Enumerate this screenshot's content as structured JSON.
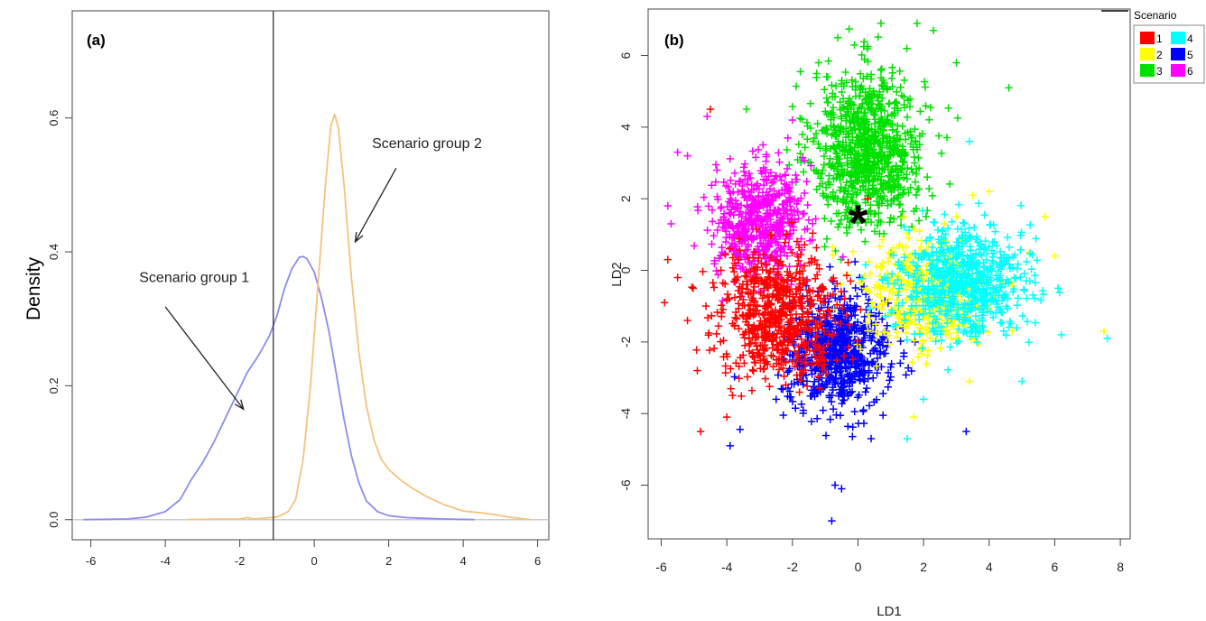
{
  "chart_data": [
    {
      "type": "line",
      "panel_label": "(a)",
      "ylabel": "Density",
      "xlabel": "",
      "xlim": [
        -6.5,
        6.3
      ],
      "ylim": [
        -0.03,
        0.76
      ],
      "x_ticks": [
        -6,
        -4,
        -2,
        0,
        2,
        4,
        6
      ],
      "y_ticks": [
        0.0,
        0.2,
        0.4,
        0.6
      ],
      "vertical_line_x": -1.1,
      "grid": false,
      "series": [
        {
          "name": "Scenario group 1",
          "color": "#8C8CF0",
          "points": [
            [
              -6.2,
              0
            ],
            [
              -5,
              0.001
            ],
            [
              -4.5,
              0.004
            ],
            [
              -4,
              0.012
            ],
            [
              -3.6,
              0.03
            ],
            [
              -3.3,
              0.06
            ],
            [
              -3,
              0.085
            ],
            [
              -2.7,
              0.115
            ],
            [
              -2.4,
              0.15
            ],
            [
              -2.1,
              0.185
            ],
            [
              -1.8,
              0.22
            ],
            [
              -1.5,
              0.245
            ],
            [
              -1.2,
              0.275
            ],
            [
              -1,
              0.305
            ],
            [
              -0.8,
              0.345
            ],
            [
              -0.6,
              0.375
            ],
            [
              -0.4,
              0.392
            ],
            [
              -0.3,
              0.393
            ],
            [
              -0.2,
              0.39
            ],
            [
              0,
              0.37
            ],
            [
              0.2,
              0.33
            ],
            [
              0.4,
              0.28
            ],
            [
              0.6,
              0.215
            ],
            [
              0.8,
              0.15
            ],
            [
              1,
              0.095
            ],
            [
              1.2,
              0.055
            ],
            [
              1.4,
              0.028
            ],
            [
              1.7,
              0.012
            ],
            [
              2,
              0.006
            ],
            [
              2.5,
              0.003
            ],
            [
              3,
              0.002
            ],
            [
              3.5,
              0.001
            ],
            [
              4.3,
              0
            ]
          ]
        },
        {
          "name": "Scenario group 2",
          "color": "#F5C27F",
          "points": [
            [
              -3.4,
              0
            ],
            [
              -2.5,
              0.001
            ],
            [
              -2,
              0.001
            ],
            [
              -1.8,
              0.003
            ],
            [
              -1.6,
              0.001
            ],
            [
              -1,
              0.004
            ],
            [
              -0.7,
              0.012
            ],
            [
              -0.5,
              0.03
            ],
            [
              -0.3,
              0.09
            ],
            [
              -0.1,
              0.2
            ],
            [
              0.1,
              0.35
            ],
            [
              0.3,
              0.5
            ],
            [
              0.45,
              0.59
            ],
            [
              0.55,
              0.605
            ],
            [
              0.65,
              0.585
            ],
            [
              0.8,
              0.5
            ],
            [
              1,
              0.36
            ],
            [
              1.2,
              0.25
            ],
            [
              1.4,
              0.17
            ],
            [
              1.6,
              0.12
            ],
            [
              1.8,
              0.09
            ],
            [
              2,
              0.075
            ],
            [
              2.3,
              0.06
            ],
            [
              2.6,
              0.048
            ],
            [
              3,
              0.035
            ],
            [
              3.5,
              0.022
            ],
            [
              4,
              0.013
            ],
            [
              4.5,
              0.01
            ],
            [
              4.8,
              0.008
            ],
            [
              5.2,
              0.004
            ],
            [
              5.8,
              0
            ]
          ]
        }
      ],
      "annotations": [
        {
          "text": "Scenario group 1",
          "text_x": -4.7,
          "text_y": 0.355,
          "arrow_from": [
            -4.0,
            0.318
          ],
          "arrow_to": [
            -1.9,
            0.165
          ]
        },
        {
          "text": "Scenario group 2",
          "text_x": 1.55,
          "text_y": 0.555,
          "arrow_from": [
            2.2,
            0.525
          ],
          "arrow_to": [
            1.1,
            0.415
          ]
        }
      ]
    },
    {
      "type": "scatter",
      "panel_label": "(b)",
      "xlabel": "LD1",
      "ylabel": "LD2",
      "xlim": [
        -6.4,
        8.3
      ],
      "ylim": [
        -7.5,
        7.3
      ],
      "x_ticks": [
        -6,
        -4,
        -2,
        0,
        2,
        4,
        6,
        8
      ],
      "y_ticks": [
        -6,
        -4,
        -2,
        0,
        2,
        4,
        6
      ],
      "marker": "+",
      "observed_marker": {
        "symbol": "*",
        "x": 0.0,
        "y": 1.4
      },
      "legend": {
        "title": "Scenario",
        "position": "top-right",
        "entries": [
          "1",
          "2",
          "3",
          "4",
          "5",
          "6"
        ]
      },
      "series": [
        {
          "name": "1",
          "color": "#FF0000",
          "center": [
            -2.4,
            -1.2
          ],
          "spread": [
            1.1,
            1.0
          ],
          "count": 650,
          "outliers": [
            [
              -5.9,
              -0.9
            ],
            [
              -5.8,
              0.3
            ],
            [
              -5.2,
              -1.4
            ],
            [
              -4.9,
              -2.8
            ],
            [
              -4.8,
              -4.5
            ],
            [
              -4.5,
              4.5
            ],
            [
              -4,
              -4.1
            ],
            [
              -5.5,
              -0.2
            ],
            [
              0.3,
              2.0
            ]
          ]
        },
        {
          "name": "2",
          "color": "#FFFF00",
          "center": [
            2.0,
            -0.7
          ],
          "spread": [
            1.2,
            1.0
          ],
          "count": 450,
          "outliers": [
            [
              7.5,
              -1.7
            ],
            [
              5.7,
              1.5
            ],
            [
              4.0,
              2.2
            ],
            [
              3.5,
              2.1
            ],
            [
              6.0,
              0.4
            ],
            [
              3.4,
              -3.1
            ],
            [
              1.7,
              -4.1
            ]
          ]
        },
        {
          "name": "3",
          "color": "#00E000",
          "center": [
            0.3,
            3.4
          ],
          "spread": [
            1.0,
            1.3
          ],
          "count": 900,
          "outliers": [
            [
              -3.4,
              4.5
            ],
            [
              1.8,
              6.9
            ],
            [
              0.7,
              6.9
            ],
            [
              2.3,
              6.7
            ],
            [
              4.6,
              5.1
            ],
            [
              -1.2,
              5.8
            ],
            [
              3.0,
              5.8
            ]
          ]
        },
        {
          "name": "4",
          "color": "#00FFFF",
          "center": [
            3.2,
            -0.3
          ],
          "spread": [
            1.1,
            0.9
          ],
          "count": 700,
          "outliers": [
            [
              7.6,
              -1.9
            ],
            [
              6.2,
              -1.8
            ],
            [
              6.1,
              -0.5
            ],
            [
              5.0,
              -3.1
            ],
            [
              3.4,
              3.6
            ],
            [
              1.5,
              -4.7
            ],
            [
              2.0,
              -3.6
            ]
          ]
        },
        {
          "name": "5",
          "color": "#0000FF",
          "center": [
            -0.6,
            -2.3
          ],
          "spread": [
            0.9,
            0.9
          ],
          "count": 700,
          "outliers": [
            [
              -0.7,
              -6.0
            ],
            [
              -0.8,
              -7.0
            ],
            [
              -0.5,
              -6.1
            ],
            [
              -3.9,
              -4.9
            ],
            [
              3.3,
              -4.5
            ],
            [
              0.4,
              -4.7
            ]
          ]
        },
        {
          "name": "6",
          "color": "#FF00FF",
          "center": [
            -3.0,
            1.4
          ],
          "spread": [
            0.8,
            0.9
          ],
          "count": 550,
          "outliers": [
            [
              -5.5,
              3.3
            ],
            [
              -5.2,
              3.2
            ],
            [
              -4.6,
              4.3
            ],
            [
              -2.0,
              4.2
            ],
            [
              -5.7,
              1.3
            ],
            [
              -4.3,
              2.8
            ],
            [
              -5.8,
              1.8
            ]
          ]
        }
      ]
    }
  ]
}
